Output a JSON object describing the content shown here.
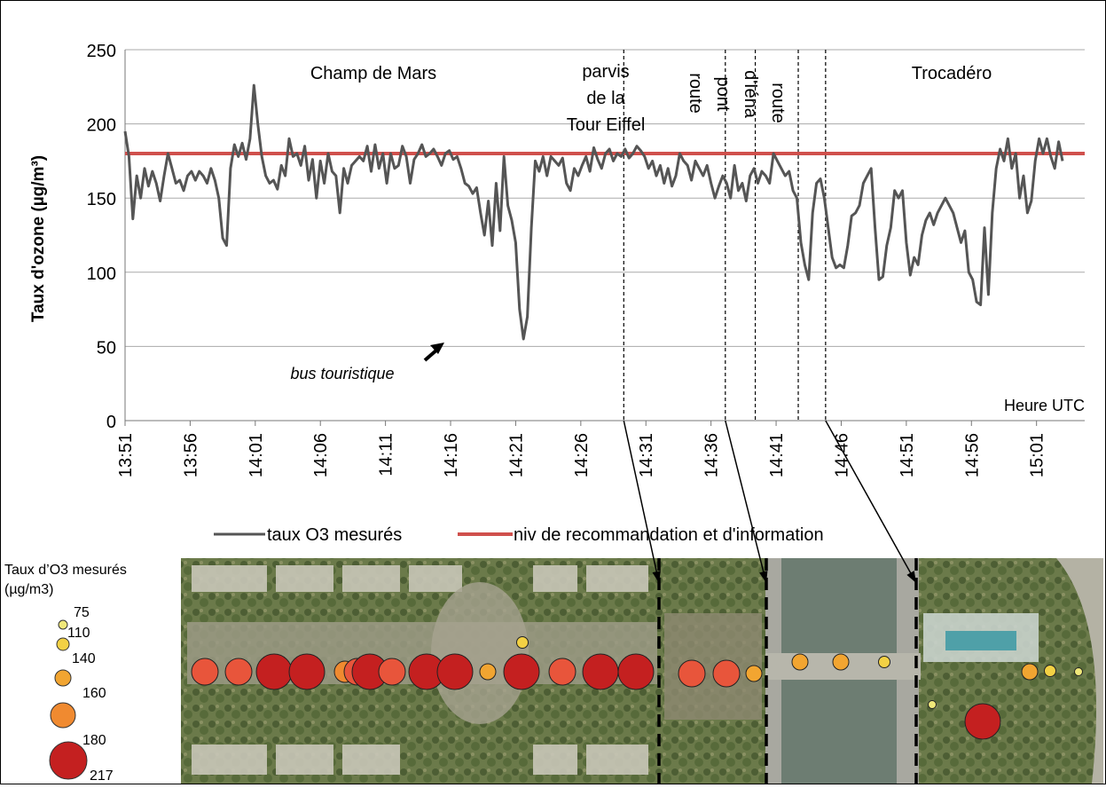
{
  "chart_data": {
    "type": "line",
    "ylabel": "Taux d'ozone (µg/m³)",
    "xlabel": "Heure UTC",
    "ylim": [
      0,
      250
    ],
    "yticks": [
      0,
      50,
      100,
      150,
      200,
      250
    ],
    "xticks": [
      "13:51",
      "13:56",
      "14:01",
      "14:06",
      "14:11",
      "14:16",
      "14:21",
      "14:26",
      "14:31",
      "14:36",
      "14:41",
      "14:46",
      "14:51",
      "14:56",
      "15:01"
    ],
    "x_range_minutes": [
      0,
      73.7
    ],
    "grid": "horizontal",
    "legend": "bottom",
    "series": [
      {
        "name": "taux O3 mesurés",
        "color": "#555555",
        "points": [
          [
            0,
            195
          ],
          [
            0.3,
            178
          ],
          [
            0.6,
            136
          ],
          [
            0.9,
            165
          ],
          [
            1.2,
            150
          ],
          [
            1.5,
            170
          ],
          [
            1.8,
            158
          ],
          [
            2.1,
            168
          ],
          [
            2.4,
            160
          ],
          [
            2.7,
            148
          ],
          [
            3,
            165
          ],
          [
            3.3,
            180
          ],
          [
            3.6,
            170
          ],
          [
            3.9,
            160
          ],
          [
            4.2,
            162
          ],
          [
            4.5,
            155
          ],
          [
            4.8,
            165
          ],
          [
            5.1,
            168
          ],
          [
            5.4,
            162
          ],
          [
            5.7,
            168
          ],
          [
            6,
            165
          ],
          [
            6.3,
            160
          ],
          [
            6.6,
            170
          ],
          [
            6.9,
            162
          ],
          [
            7.2,
            150
          ],
          [
            7.5,
            123
          ],
          [
            7.8,
            118
          ],
          [
            8.1,
            170
          ],
          [
            8.4,
            186
          ],
          [
            8.7,
            178
          ],
          [
            9,
            187
          ],
          [
            9.3,
            176
          ],
          [
            9.6,
            190
          ],
          [
            9.9,
            226
          ],
          [
            10.2,
            200
          ],
          [
            10.5,
            178
          ],
          [
            10.8,
            165
          ],
          [
            11.1,
            160
          ],
          [
            11.4,
            162
          ],
          [
            11.7,
            156
          ],
          [
            12,
            172
          ],
          [
            12.3,
            165
          ],
          [
            12.6,
            190
          ],
          [
            12.9,
            178
          ],
          [
            13.2,
            180
          ],
          [
            13.5,
            172
          ],
          [
            13.8,
            185
          ],
          [
            14.1,
            162
          ],
          [
            14.4,
            176
          ],
          [
            14.7,
            150
          ],
          [
            15,
            175
          ],
          [
            15.3,
            160
          ],
          [
            15.6,
            180
          ],
          [
            15.9,
            168
          ],
          [
            16.2,
            165
          ],
          [
            16.5,
            140
          ],
          [
            16.8,
            170
          ],
          [
            17.1,
            160
          ],
          [
            17.4,
            172
          ],
          [
            17.7,
            175
          ],
          [
            18,
            178
          ],
          [
            18.3,
            175
          ],
          [
            18.6,
            185
          ],
          [
            18.9,
            168
          ],
          [
            19.2,
            186
          ],
          [
            19.5,
            170
          ],
          [
            19.8,
            180
          ],
          [
            20.1,
            160
          ],
          [
            20.4,
            180
          ],
          [
            20.7,
            170
          ],
          [
            21,
            172
          ],
          [
            21.3,
            185
          ],
          [
            21.6,
            178
          ],
          [
            21.9,
            160
          ],
          [
            22.2,
            176
          ],
          [
            22.5,
            180
          ],
          [
            22.8,
            186
          ],
          [
            23.1,
            178
          ],
          [
            23.4,
            180
          ],
          [
            23.7,
            183
          ],
          [
            24,
            178
          ],
          [
            24.3,
            172
          ],
          [
            24.6,
            180
          ],
          [
            24.9,
            182
          ],
          [
            25.2,
            176
          ],
          [
            25.5,
            178
          ],
          [
            25.8,
            170
          ],
          [
            26.1,
            160
          ],
          [
            26.4,
            158
          ],
          [
            26.7,
            153
          ],
          [
            27,
            157
          ],
          [
            27.3,
            140
          ],
          [
            27.6,
            125
          ],
          [
            27.9,
            148
          ],
          [
            28.2,
            118
          ],
          [
            28.5,
            160
          ],
          [
            28.8,
            128
          ],
          [
            29.1,
            178
          ],
          [
            29.4,
            145
          ],
          [
            29.7,
            135
          ],
          [
            30,
            120
          ],
          [
            30.3,
            75
          ],
          [
            30.6,
            55
          ],
          [
            30.9,
            70
          ],
          [
            31.2,
            130
          ],
          [
            31.5,
            175
          ],
          [
            31.8,
            168
          ],
          [
            32.1,
            178
          ],
          [
            32.4,
            165
          ],
          [
            32.7,
            178
          ],
          [
            33,
            175
          ],
          [
            33.3,
            172
          ],
          [
            33.6,
            177
          ],
          [
            33.9,
            160
          ],
          [
            34.2,
            155
          ],
          [
            34.5,
            170
          ],
          [
            34.8,
            165
          ],
          [
            35.1,
            172
          ],
          [
            35.4,
            178
          ],
          [
            35.7,
            168
          ],
          [
            36,
            184
          ],
          [
            36.3,
            176
          ],
          [
            36.6,
            170
          ],
          [
            36.9,
            180
          ],
          [
            37.2,
            183
          ],
          [
            37.5,
            175
          ],
          [
            37.8,
            180
          ],
          [
            38.1,
            178
          ],
          [
            38.4,
            183
          ],
          [
            38.7,
            177
          ],
          [
            39,
            180
          ],
          [
            39.3,
            185
          ],
          [
            39.6,
            182
          ],
          [
            39.9,
            178
          ],
          [
            40.2,
            170
          ],
          [
            40.5,
            175
          ],
          [
            40.8,
            165
          ],
          [
            41.1,
            172
          ],
          [
            41.4,
            160
          ],
          [
            41.7,
            170
          ],
          [
            42,
            158
          ],
          [
            42.3,
            165
          ],
          [
            42.6,
            180
          ],
          [
            42.9,
            175
          ],
          [
            43.2,
            172
          ],
          [
            43.5,
            162
          ],
          [
            43.8,
            175
          ],
          [
            44.1,
            170
          ],
          [
            44.4,
            165
          ],
          [
            44.7,
            172
          ],
          [
            45,
            160
          ],
          [
            45.3,
            150
          ],
          [
            45.6,
            158
          ],
          [
            45.9,
            165
          ],
          [
            46.2,
            160
          ],
          [
            46.5,
            150
          ],
          [
            46.8,
            172
          ],
          [
            47.1,
            155
          ],
          [
            47.4,
            160
          ],
          [
            47.7,
            148
          ],
          [
            48,
            165
          ],
          [
            48.3,
            170
          ],
          [
            48.6,
            160
          ],
          [
            48.9,
            168
          ],
          [
            49.2,
            165
          ],
          [
            49.5,
            160
          ],
          [
            49.8,
            180
          ],
          [
            50.1,
            175
          ],
          [
            50.4,
            170
          ],
          [
            50.7,
            165
          ],
          [
            51,
            168
          ],
          [
            51.3,
            155
          ],
          [
            51.6,
            150
          ],
          [
            51.9,
            120
          ],
          [
            52.2,
            105
          ],
          [
            52.5,
            95
          ],
          [
            52.8,
            140
          ],
          [
            53.1,
            160
          ],
          [
            53.4,
            163
          ],
          [
            53.7,
            150
          ],
          [
            54,
            130
          ],
          [
            54.3,
            110
          ],
          [
            54.6,
            103
          ],
          [
            54.9,
            105
          ],
          [
            55.2,
            103
          ],
          [
            55.5,
            118
          ],
          [
            55.8,
            138
          ],
          [
            56.1,
            140
          ],
          [
            56.4,
            145
          ],
          [
            56.7,
            160
          ],
          [
            57,
            165
          ],
          [
            57.3,
            170
          ],
          [
            57.6,
            130
          ],
          [
            57.9,
            95
          ],
          [
            58.2,
            97
          ],
          [
            58.5,
            118
          ],
          [
            58.8,
            130
          ],
          [
            59.1,
            155
          ],
          [
            59.4,
            150
          ],
          [
            59.7,
            155
          ],
          [
            60,
            120
          ],
          [
            60.3,
            98
          ],
          [
            60.6,
            110
          ],
          [
            60.9,
            105
          ],
          [
            61.2,
            125
          ],
          [
            61.5,
            135
          ],
          [
            61.8,
            140
          ],
          [
            62.1,
            132
          ],
          [
            62.4,
            140
          ],
          [
            62.7,
            145
          ],
          [
            63,
            150
          ],
          [
            63.3,
            145
          ],
          [
            63.6,
            140
          ],
          [
            63.9,
            130
          ],
          [
            64.2,
            120
          ],
          [
            64.5,
            128
          ],
          [
            64.8,
            100
          ],
          [
            65.1,
            95
          ],
          [
            65.4,
            80
          ],
          [
            65.7,
            78
          ],
          [
            66,
            130
          ],
          [
            66.3,
            85
          ],
          [
            66.6,
            140
          ],
          [
            66.9,
            170
          ],
          [
            67.2,
            183
          ],
          [
            67.5,
            175
          ],
          [
            67.8,
            190
          ],
          [
            68.1,
            170
          ],
          [
            68.4,
            180
          ],
          [
            68.7,
            150
          ],
          [
            69,
            165
          ],
          [
            69.3,
            140
          ],
          [
            69.6,
            148
          ],
          [
            69.9,
            175
          ],
          [
            70.2,
            190
          ],
          [
            70.5,
            180
          ],
          [
            70.8,
            190
          ],
          [
            71.1,
            178
          ],
          [
            71.4,
            170
          ],
          [
            71.7,
            188
          ],
          [
            72,
            175
          ]
        ]
      },
      {
        "name": "niv de recommandation et d'information",
        "color": "#d0504c",
        "constant": 180
      }
    ],
    "zones": [
      {
        "label": "Champ de Mars",
        "start": 0
      },
      {
        "label": "parvis de la Tour Eiffel",
        "start": 38.3
      },
      {
        "label": "route",
        "start": 46.1
      },
      {
        "label": "pont d'Iéna",
        "start": 48.4
      },
      {
        "label": "route",
        "start": 51.7
      },
      {
        "label": "Trocadéro",
        "start": 53.8
      }
    ],
    "annotation": "bus touristique"
  },
  "chart_texts": {
    "zone_1": "Champ de Mars",
    "zone_2_line1": "parvis",
    "zone_2_line2": "de la",
    "zone_2_line3": "Tour Eiffel",
    "zone_3": "route",
    "zone_4_line1": "pont",
    "zone_4_line2": "d'Iéna",
    "zone_5": "route",
    "zone_6": "Trocadéro",
    "annotation": "bus touristique",
    "xlabel": "Heure UTC",
    "legend_series1": "taux O3 mesurés",
    "legend_series2": "niv de recommandation et d'information"
  },
  "map_legend": {
    "title_line1": "Taux d’O3 mesurés",
    "title_line2": "(µg/m3)",
    "levels": [
      "75",
      "110",
      "140",
      "160",
      "180",
      "217"
    ]
  },
  "map_markers": [
    {
      "value": 180
    },
    {
      "value": 180
    },
    {
      "value": 217
    },
    {
      "value": 217
    },
    {
      "value": 160
    },
    {
      "value": 180
    },
    {
      "value": 217
    },
    {
      "value": 180
    },
    {
      "value": 217
    },
    {
      "value": 217
    },
    {
      "value": 140
    },
    {
      "value": 110
    },
    {
      "value": 217
    },
    {
      "value": 180
    },
    {
      "value": 217
    },
    {
      "value": 217
    },
    {
      "value": 180
    },
    {
      "value": 180
    },
    {
      "value": 140
    },
    {
      "value": 140
    },
    {
      "value": 140
    },
    {
      "value": 110
    },
    {
      "value": 140
    },
    {
      "value": 110
    },
    {
      "value": 75
    },
    {
      "value": 75
    },
    {
      "value": 217
    }
  ],
  "colors": {
    "c75": "#f0e87a",
    "c110": "#f3d144",
    "c140": "#f2a531",
    "c160": "#f08a30",
    "c180": "#e8553b",
    "c217": "#c42020"
  }
}
